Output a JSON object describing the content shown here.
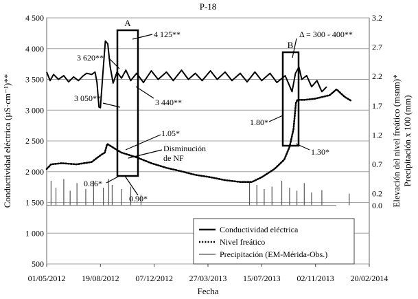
{
  "chart_data": {
    "type": "line",
    "title": "P-18",
    "xlabel": "Fecha",
    "ylabel_left": "Conductividad eléctrica (µS·cm⁻¹)**",
    "ylabel_right_1": "Elevación del nivel freático (msnm)*",
    "ylabel_right_2": "Precipitación x 100 (mm)",
    "x_ticks": [
      "01/05/2012",
      "19/08/2012",
      "07/12/2012",
      "27/03/2013",
      "15/07/2013",
      "02/11/2013",
      "20/02/2014"
    ],
    "x_range": [
      "2012-05-01",
      "2014-02-20"
    ],
    "y_left": {
      "min": 500,
      "max": 4500,
      "ticks": [
        "500",
        "1 000",
        "1 500",
        "2 000",
        "2 500",
        "3 000",
        "3 500",
        "4 000",
        "4 500"
      ]
    },
    "y_right": {
      "min": -1.0,
      "max": 3.2,
      "ticks": [
        "0.0",
        "0.2",
        "0.7",
        "1.2",
        "1.7",
        "2.2",
        "2.7",
        "3.2"
      ]
    },
    "grid": "horizontal",
    "legend_position": "bottom-right",
    "series": [
      {
        "name": "Conductividad eléctrica",
        "axis": "left",
        "style": "solid-thick",
        "points": [
          [
            "2012-05-01",
            3620
          ],
          [
            "2012-05-08",
            3480
          ],
          [
            "2012-05-15",
            3580
          ],
          [
            "2012-05-25",
            3500
          ],
          [
            "2012-06-05",
            3560
          ],
          [
            "2012-06-15",
            3460
          ],
          [
            "2012-06-25",
            3540
          ],
          [
            "2012-07-05",
            3480
          ],
          [
            "2012-07-15",
            3560
          ],
          [
            "2012-07-22",
            3600
          ],
          [
            "2012-08-01",
            3580
          ],
          [
            "2012-08-08",
            3620
          ],
          [
            "2012-08-12",
            3450
          ],
          [
            "2012-08-16",
            3050
          ],
          [
            "2012-08-19",
            3040
          ],
          [
            "2012-08-24",
            3600
          ],
          [
            "2012-08-29",
            4125
          ],
          [
            "2012-09-03",
            4080
          ],
          [
            "2012-09-08",
            3700
          ],
          [
            "2012-09-14",
            3440
          ],
          [
            "2012-09-22",
            3620
          ],
          [
            "2012-10-01",
            3520
          ],
          [
            "2012-10-10",
            3650
          ],
          [
            "2012-10-20",
            3480
          ],
          [
            "2012-11-01",
            3600
          ],
          [
            "2012-11-15",
            3450
          ],
          [
            "2012-12-01",
            3640
          ],
          [
            "2012-12-15",
            3500
          ],
          [
            "2013-01-01",
            3620
          ],
          [
            "2013-01-15",
            3480
          ],
          [
            "2013-02-01",
            3650
          ],
          [
            "2013-02-15",
            3500
          ],
          [
            "2013-03-01",
            3600
          ],
          [
            "2013-03-15",
            3480
          ],
          [
            "2013-04-01",
            3640
          ],
          [
            "2013-04-15",
            3500
          ],
          [
            "2013-05-01",
            3620
          ],
          [
            "2013-05-15",
            3480
          ],
          [
            "2013-06-01",
            3600
          ],
          [
            "2013-06-15",
            3460
          ],
          [
            "2013-07-01",
            3620
          ],
          [
            "2013-07-15",
            3480
          ],
          [
            "2013-08-01",
            3600
          ],
          [
            "2013-08-15",
            3450
          ],
          [
            "2013-09-01",
            3560
          ],
          [
            "2013-09-15",
            3300
          ],
          [
            "2013-09-22",
            3600
          ],
          [
            "2013-09-29",
            3700
          ],
          [
            "2013-10-05",
            3500
          ],
          [
            "2013-10-15",
            3560
          ],
          [
            "2013-10-25",
            3380
          ],
          [
            "2013-11-05",
            3480
          ],
          [
            "2013-11-15",
            3300
          ],
          [
            "2013-11-25",
            3380
          ]
        ]
      },
      {
        "name": "Nivel freático",
        "axis": "right",
        "style": "dotted",
        "points": [
          [
            "2012-05-01",
            0.62
          ],
          [
            "2012-05-10",
            0.7
          ],
          [
            "2012-06-01",
            0.72
          ],
          [
            "2012-07-01",
            0.7
          ],
          [
            "2012-08-01",
            0.74
          ],
          [
            "2012-08-20",
            0.86
          ],
          [
            "2012-08-28",
            0.9
          ],
          [
            "2012-09-02",
            1.05
          ],
          [
            "2012-09-15",
            0.98
          ],
          [
            "2012-10-01",
            0.9
          ],
          [
            "2012-11-01",
            0.82
          ],
          [
            "2012-12-01",
            0.72
          ],
          [
            "2013-01-01",
            0.64
          ],
          [
            "2013-02-01",
            0.58
          ],
          [
            "2013-03-01",
            0.52
          ],
          [
            "2013-04-01",
            0.48
          ],
          [
            "2013-05-01",
            0.43
          ],
          [
            "2013-06-01",
            0.4
          ],
          [
            "2013-06-25",
            0.4
          ],
          [
            "2013-07-15",
            0.48
          ],
          [
            "2013-08-10",
            0.62
          ],
          [
            "2013-08-30",
            0.78
          ],
          [
            "2013-09-10",
            1.0
          ],
          [
            "2013-09-18",
            1.3
          ],
          [
            "2013-09-23",
            1.75
          ],
          [
            "2013-09-26",
            1.8
          ],
          [
            "2013-10-10",
            1.8
          ],
          [
            "2013-11-01",
            1.82
          ],
          [
            "2013-12-01",
            1.88
          ],
          [
            "2013-12-15",
            1.98
          ],
          [
            "2014-01-01",
            1.85
          ],
          [
            "2014-01-15",
            1.78
          ]
        ]
      },
      {
        "name": "Precipitación (EM-Mérida-Obs.)",
        "axis": "right",
        "style": "bars-thin",
        "points": [
          [
            "2012-05-10",
            0.42
          ],
          [
            "2012-05-20",
            0.3
          ],
          [
            "2012-06-05",
            0.45
          ],
          [
            "2012-06-18",
            0.25
          ],
          [
            "2012-07-02",
            0.38
          ],
          [
            "2012-07-20",
            0.28
          ],
          [
            "2012-08-05",
            0.42
          ],
          [
            "2012-08-25",
            0.3
          ],
          [
            "2012-09-05",
            0.45
          ],
          [
            "2012-09-12",
            0.35
          ],
          [
            "2012-10-01",
            0.28
          ],
          [
            "2012-10-20",
            0.32
          ],
          [
            "2012-11-10",
            0.18
          ],
          [
            "2013-06-20",
            0.4
          ],
          [
            "2013-07-05",
            0.35
          ],
          [
            "2013-07-20",
            0.28
          ],
          [
            "2013-08-05",
            0.32
          ],
          [
            "2013-08-25",
            0.42
          ],
          [
            "2013-09-10",
            0.3
          ],
          [
            "2013-09-25",
            0.25
          ],
          [
            "2013-10-10",
            0.38
          ],
          [
            "2013-10-25",
            0.22
          ],
          [
            "2013-11-15",
            0.26
          ],
          [
            "2014-01-10",
            0.2
          ]
        ]
      }
    ],
    "annotations": {
      "box_a_label": "A",
      "box_b_label": "B",
      "a1": "3 620**",
      "a2": "3 050**",
      "a3": "4 125**",
      "a4": "3 440**",
      "a5": "1.05*",
      "a6": "Disminución",
      "a7": "de NF",
      "a8": "0.86*",
      "a9": "0.90*",
      "b1": "Δ = 300 - 400**",
      "b2": "1.80*",
      "b3": "1.30*"
    }
  }
}
